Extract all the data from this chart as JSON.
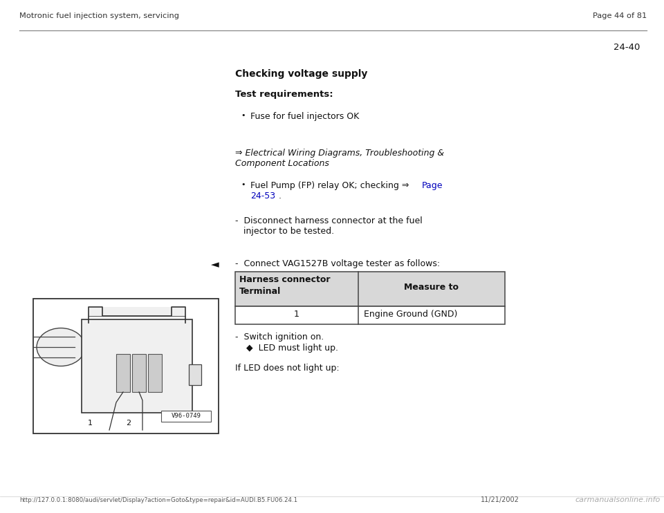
{
  "bg_color": "#ffffff",
  "header_left": "Motronic fuel injection system, servicing",
  "header_right": "Page 44 of 81",
  "page_number": "24-40",
  "section_title": "Checking voltage supply",
  "test_req_label": "Test requirements:",
  "bullet1": "Fuse for fuel injectors OK",
  "arrow_ref_line1": "⇒ Electrical Wiring Diagrams, Troubleshooting &",
  "arrow_ref_line2": "Component Locations",
  "bullet2_text": "Fuel Pump (FP) relay OK; checking ⇒ ",
  "bullet2_link1": "Page",
  "bullet2_link2": "24-53",
  "bullet2_dot": " .",
  "dash1_line1": "-  Disconnect harness connector at the fuel",
  "dash1_line2": "   injector to be tested.",
  "dash2": "-  Connect VAG1527B voltage tester as follows:",
  "table_h1_line1": "Harness connector",
  "table_h1_line2": "Terminal",
  "table_h2": "Measure to",
  "table_d1": "1",
  "table_d2": "Engine Ground (GND)",
  "dash3": "-  Switch ignition on.",
  "diamond_item": "◆  LED must light up.",
  "final_text": "If LED does not light up:",
  "footer_url": "http://127.0.0.1:8080/audi/servlet/Display?action=Goto&type=repair&id=AUDI.B5.FU06.24.1",
  "footer_date": "11/21/2002",
  "footer_logo": "carmanualsonline.info",
  "link_color": "#0000bb",
  "table_header_bg": "#d8d8d8",
  "table_border_color": "#444444",
  "text_color": "#111111",
  "header_color": "#333333",
  "line_color": "#888888"
}
